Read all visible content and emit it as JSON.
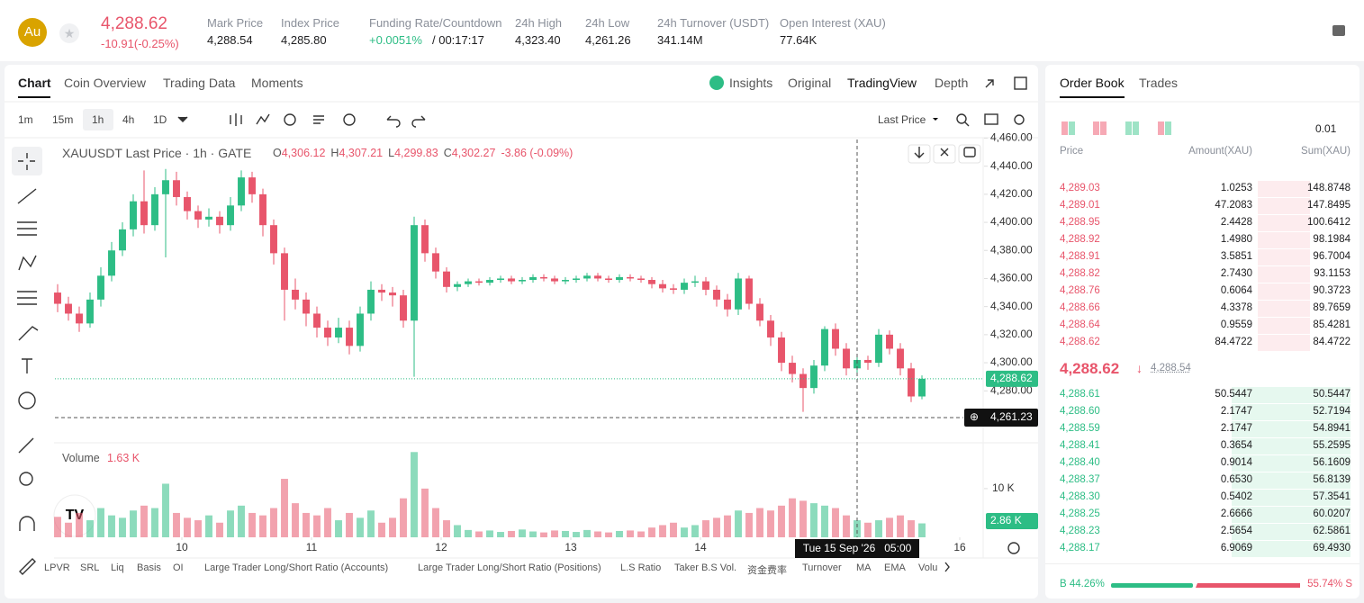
{
  "header": {
    "symbol_icon": "Au",
    "price": "4,288.62",
    "change": "-10.91(-0.25%)",
    "stats": [
      {
        "label": "Mark Price",
        "value": "4,288.54"
      },
      {
        "label": "Index Price",
        "value": "4,285.80"
      },
      {
        "label": "Funding Rate/Countdown",
        "value": "+0.0051%",
        "countdown": "/ 00:17:17"
      },
      {
        "label": "24h High",
        "value": "4,323.40"
      },
      {
        "label": "24h Low",
        "value": "4,261.26"
      },
      {
        "label": "24h Turnover (USDT)",
        "value": "341.14M"
      },
      {
        "label": "Open Interest (XAU)",
        "value": "77.64K"
      }
    ]
  },
  "tabs": [
    "Chart",
    "Coin Overview",
    "Trading Data",
    "Moments"
  ],
  "view_tabs": [
    "Insights",
    "Original",
    "TradingView",
    "Depth"
  ],
  "intervals": [
    "1m",
    "15m",
    "1h",
    "4h",
    "1D"
  ],
  "price_type": "Last Price",
  "legend": {
    "title": "XAUUSDT Last Price · 1h · GATE",
    "ohlc": [
      {
        "key": "O",
        "value": "4,306.12"
      },
      {
        "key": "H",
        "value": "4,307.21"
      },
      {
        "key": "L",
        "value": "4,299.83"
      },
      {
        "key": "C",
        "value": "4,302.27"
      }
    ],
    "change": "-3.86 (-0.09%)"
  },
  "volume_legend": {
    "label": "Volume",
    "value": "1.63 K"
  },
  "price_tags": {
    "last": "4,288.62",
    "cross": "4,261.23",
    "volume": "2.86 K"
  },
  "crosshair_time": "Tue 15 Sep '26   05:00",
  "indicators": [
    "LPVR",
    "SRL",
    "Liq",
    "Basis",
    "OI",
    "Large Trader Long/Short Ratio (Accounts)",
    "Large Trader Long/Short Ratio (Positions)",
    "L.S Ratio",
    "Taker B.S Vol.",
    "资金费率",
    "Turnover",
    "MA",
    "EMA",
    "Volu"
  ],
  "chart_data": {
    "type": "candlestick",
    "up_color": "#2dbd85",
    "down_color": "#e8556b",
    "grid": false,
    "x": [
      1,
      3,
      5,
      7,
      9,
      11,
      13,
      15,
      17,
      19,
      21,
      23,
      25,
      27,
      29,
      31,
      33,
      35,
      37,
      39,
      41,
      43,
      45,
      47,
      49,
      51,
      53,
      55,
      57,
      59,
      61,
      63,
      65,
      67,
      69,
      71,
      73,
      75,
      77,
      79,
      81,
      83,
      85,
      87,
      89,
      91,
      93,
      95,
      97,
      99,
      101,
      103,
      105,
      107,
      109,
      111,
      113,
      115,
      117,
      119,
      121,
      123,
      125,
      127,
      129,
      131,
      133,
      135,
      137,
      139,
      141,
      143,
      145,
      147,
      149,
      151,
      153,
      155,
      157,
      159,
      161
    ],
    "open": [
      4350,
      4342,
      4335,
      4328,
      4345,
      4362,
      4380,
      4395,
      4415,
      4398,
      4420,
      4430,
      4418,
      4408,
      4402,
      4404,
      4398,
      4412,
      4432,
      4420,
      4398,
      4378,
      4352,
      4345,
      4335,
      4325,
      4318,
      4325,
      4312,
      4335,
      4352,
      4350,
      4348,
      4330,
      4398,
      4378,
      4365,
      4354,
      4356,
      4358,
      4357,
      4359,
      4360,
      4358,
      4359,
      4361,
      4360,
      4358,
      4359,
      4360,
      4362,
      4360,
      4359,
      4361,
      4360,
      4359,
      4356,
      4353,
      4352,
      4357,
      4358,
      4352,
      4345,
      4338,
      4360,
      4342,
      4330,
      4318,
      4300,
      4292,
      4282,
      4298,
      4324,
      4310,
      4296,
      4302,
      4300,
      4320,
      4310,
      4296,
      4276
    ],
    "high": [
      4356,
      4347,
      4340,
      4350,
      4368,
      4386,
      4400,
      4420,
      4437,
      4425,
      4438,
      4436,
      4422,
      4412,
      4410,
      4408,
      4418,
      4437,
      4436,
      4424,
      4402,
      4382,
      4360,
      4350,
      4340,
      4330,
      4332,
      4330,
      4340,
      4358,
      4356,
      4354,
      4352,
      4404,
      4402,
      4382,
      4368,
      4358,
      4360,
      4360,
      4361,
      4362,
      4362,
      4361,
      4363,
      4363,
      4362,
      4361,
      4362,
      4364,
      4364,
      4362,
      4363,
      4363,
      4362,
      4361,
      4359,
      4356,
      4360,
      4362,
      4361,
      4355,
      4349,
      4364,
      4362,
      4346,
      4334,
      4322,
      4305,
      4296,
      4302,
      4326,
      4328,
      4314,
      4306,
      4305,
      4324,
      4323,
      4314,
      4300,
      4291
    ],
    "low": [
      4336,
      4330,
      4322,
      4325,
      4340,
      4358,
      4376,
      4390,
      4392,
      4394,
      4375,
      4412,
      4402,
      4396,
      4397,
      4392,
      4394,
      4408,
      4414,
      4390,
      4370,
      4330,
      4338,
      4326,
      4318,
      4312,
      4314,
      4306,
      4308,
      4330,
      4344,
      4340,
      4325,
      4290,
      4372,
      4360,
      4350,
      4351,
      4354,
      4355,
      4355,
      4357,
      4356,
      4356,
      4357,
      4358,
      4356,
      4356,
      4357,
      4358,
      4358,
      4357,
      4357,
      4358,
      4357,
      4353,
      4350,
      4349,
      4349,
      4354,
      4348,
      4340,
      4333,
      4334,
      4338,
      4326,
      4312,
      4294,
      4286,
      4265,
      4278,
      4294,
      4305,
      4291,
      4292,
      4295,
      4297,
      4306,
      4291,
      4272,
      4274
    ],
    "close": [
      4342,
      4335,
      4328,
      4345,
      4362,
      4380,
      4395,
      4415,
      4398,
      4420,
      4430,
      4418,
      4408,
      4402,
      4404,
      4398,
      4412,
      4432,
      4420,
      4398,
      4378,
      4352,
      4345,
      4335,
      4325,
      4318,
      4325,
      4312,
      4335,
      4352,
      4350,
      4348,
      4330,
      4398,
      4378,
      4365,
      4354,
      4356,
      4358,
      4357,
      4359,
      4360,
      4358,
      4359,
      4361,
      4360,
      4358,
      4359,
      4360,
      4362,
      4360,
      4359,
      4361,
      4360,
      4359,
      4356,
      4353,
      4352,
      4357,
      4358,
      4352,
      4345,
      4338,
      4360,
      4342,
      4330,
      4318,
      4300,
      4292,
      4282,
      4298,
      4324,
      4310,
      4296,
      4302,
      4300,
      4320,
      4310,
      4296,
      4276,
      4288.62
    ],
    "volume": [
      4200,
      3000,
      5000,
      3500,
      6000,
      4500,
      4000,
      5500,
      6500,
      6000,
      11000,
      5000,
      4000,
      3500,
      4500,
      3000,
      5500,
      6500,
      5000,
      4500,
      6000,
      12000,
      7000,
      5000,
      4500,
      6000,
      3500,
      5000,
      4000,
      5500,
      3000,
      4000,
      8000,
      17500,
      10000,
      6000,
      3500,
      2500,
      1500,
      1200,
      1400,
      1100,
      1300,
      1600,
      1200,
      1000,
      1400,
      1300,
      1100,
      1500,
      1200,
      1000,
      1300,
      1400,
      1200,
      2000,
      2500,
      3000,
      2000,
      2500,
      3500,
      4000,
      4500,
      5500,
      5000,
      6000,
      5500,
      6500,
      8000,
      7500,
      7000,
      6500,
      6000,
      4500,
      3500,
      3000,
      3500,
      4000,
      4500,
      3500,
      2860
    ],
    "xlim": [
      0.5,
      172.5
    ],
    "xticks": [
      {
        "value": 24,
        "label": "10"
      },
      {
        "value": 48,
        "label": "11"
      },
      {
        "value": 72,
        "label": "12"
      },
      {
        "value": 96,
        "label": "13"
      },
      {
        "value": 120,
        "label": "14"
      },
      {
        "value": 168,
        "label": "16"
      }
    ],
    "ylim": [
      4243,
      4459
    ],
    "yticks": [
      {
        "value": 4280,
        "label": "4,280.00"
      },
      {
        "value": 4300,
        "label": "4,300.00"
      },
      {
        "value": 4320,
        "label": "4,320.00"
      },
      {
        "value": 4340,
        "label": "4,340.00"
      },
      {
        "value": 4360,
        "label": "4,360.00"
      },
      {
        "value": 4380,
        "label": "4,380.00"
      },
      {
        "value": 4400,
        "label": "4,400.00"
      },
      {
        "value": 4420,
        "label": "4,420.00"
      },
      {
        "value": 4440,
        "label": "4,440.00"
      },
      {
        "value": 4460,
        "label": "4,460.00"
      }
    ],
    "volume_ylim": [
      0,
      19400
    ],
    "volume_yticks": [
      {
        "value": 10000,
        "label": "10 K"
      }
    ]
  },
  "order_book": {
    "tabs": [
      "Order Book",
      "Trades"
    ],
    "precision": "0.01",
    "columns": [
      "Price",
      "Amount(XAU)",
      "Sum(XAU)"
    ],
    "asks": [
      [
        "4,289.03",
        "1.0253",
        "148.8748"
      ],
      [
        "4,289.01",
        "47.2083",
        "147.8495"
      ],
      [
        "4,288.95",
        "2.4428",
        "100.6412"
      ],
      [
        "4,288.92",
        "1.4980",
        "98.1984"
      ],
      [
        "4,288.91",
        "3.5851",
        "96.7004"
      ],
      [
        "4,288.82",
        "2.7430",
        "93.1153"
      ],
      [
        "4,288.76",
        "0.6064",
        "90.3723"
      ],
      [
        "4,288.66",
        "4.3378",
        "89.7659"
      ],
      [
        "4,288.64",
        "0.9559",
        "85.4281"
      ],
      [
        "4,288.62",
        "84.4722",
        "84.4722"
      ]
    ],
    "last_price": "4,288.62",
    "mark_price": "4,288.54",
    "bids": [
      [
        "4,288.61",
        "50.5447",
        "50.5447"
      ],
      [
        "4,288.60",
        "2.1747",
        "52.7194"
      ],
      [
        "4,288.59",
        "2.1747",
        "54.8941"
      ],
      [
        "4,288.41",
        "0.3654",
        "55.2595"
      ],
      [
        "4,288.40",
        "0.9014",
        "56.1609"
      ],
      [
        "4,288.37",
        "0.6530",
        "56.8139"
      ],
      [
        "4,288.30",
        "0.5402",
        "57.3541"
      ],
      [
        "4,288.25",
        "2.6666",
        "60.0207"
      ],
      [
        "4,288.23",
        "2.5654",
        "62.5861"
      ],
      [
        "4,288.17",
        "6.9069",
        "69.4930"
      ]
    ],
    "buy_ratio": "B 44.26%",
    "sell_ratio": "55.74% S"
  }
}
